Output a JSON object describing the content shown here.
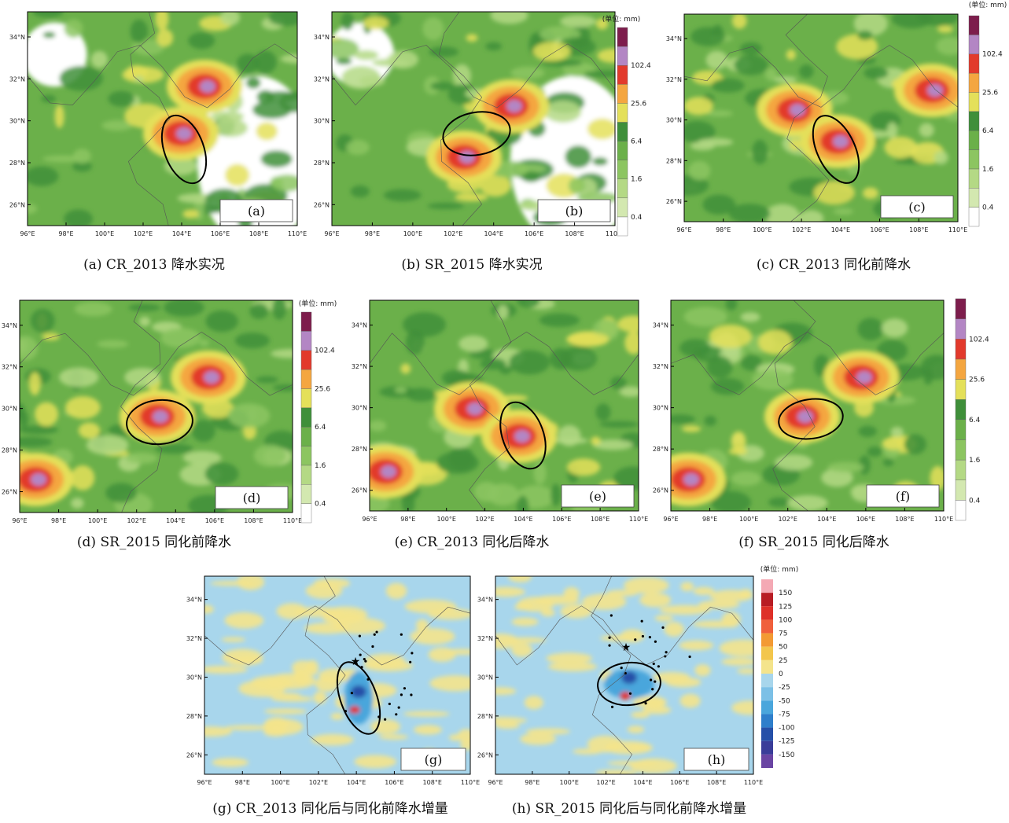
{
  "panels": [
    {
      "label": "(a)",
      "caption": "(a) CR_2013 降水实况"
    },
    {
      "label": "(b)",
      "caption": "(b) SR_2015 降水实况"
    },
    {
      "label": "(c)",
      "caption": "(c) CR_2013 同化前降水"
    },
    {
      "label": "(d)",
      "caption": "(d) SR_2015 同化前降水"
    },
    {
      "label": "(e)",
      "caption": "(e) CR_2013 同化后降水"
    },
    {
      "label": "(f)",
      "caption": "(f) SR_2015 同化后降水"
    },
    {
      "label": "(g)",
      "caption": "(g) CR_2013 同化后与同化前降水增量"
    },
    {
      "label": "(h)",
      "caption": "(h) SR_2015 同化后与同化前降水增量"
    }
  ],
  "longitude_labels": [
    "96°E",
    "98°E",
    "100°E",
    "102°E",
    "104°E",
    "106°E",
    "108°E",
    "110°E"
  ],
  "latitude_labels": [
    "26°N",
    "28°N",
    "30°N",
    "32°N",
    "34°N"
  ],
  "precip_legend": {
    "unit": "(单位: mm)",
    "labels": [
      "0.4",
      "1.6",
      "6.4",
      "25.6",
      "102.4"
    ],
    "colors": [
      "#ffffff",
      "#d3e8b0",
      "#b4d985",
      "#8cc561",
      "#6bb04a",
      "#3f8f3a",
      "#e4e05a",
      "#f4a640",
      "#e23a2c",
      "#b386c4",
      "#7d1d4c"
    ]
  },
  "diff_legend": {
    "unit": "(单位: mm)",
    "labels": [
      "150",
      "125",
      "100",
      "75",
      "50",
      "25",
      "0",
      "-25",
      "-50",
      "-75",
      "-100",
      "-125",
      "-150"
    ],
    "colors": [
      "#f4a9b4",
      "#b81c24",
      "#de3029",
      "#f0603c",
      "#f39a33",
      "#f3c64c",
      "#f4e48c",
      "#a8d6ec",
      "#7cc0e6",
      "#4aa6dc",
      "#2f7fcb",
      "#2650a8",
      "#3a3d99",
      "#6a45a3"
    ]
  }
}
